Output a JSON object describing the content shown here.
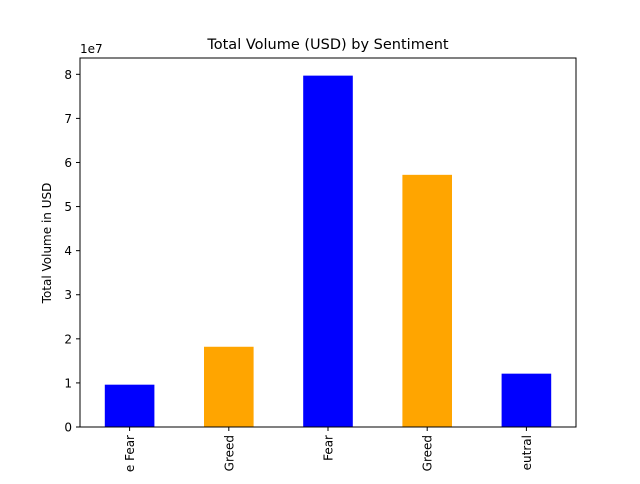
{
  "chart_data": {
    "type": "bar",
    "title": "Total Volume (USD) by Sentiment",
    "xlabel": "",
    "ylabel": "Total Volume in USD",
    "offset_label": "1e7",
    "categories": [
      "e Fear",
      "Greed",
      "Fear",
      "Greed",
      "eutral"
    ],
    "values": [
      9600000,
      18200000,
      79700000,
      57200000,
      12100000
    ],
    "bar_colors": [
      "#0000ff",
      "#ffa500",
      "#0000ff",
      "#ffa500",
      "#0000ff"
    ],
    "yticks": [
      0,
      10000000,
      20000000,
      30000000,
      40000000,
      50000000,
      60000000,
      70000000,
      80000000
    ],
    "ytick_labels": [
      "0",
      "1",
      "2",
      "3",
      "4",
      "5",
      "6",
      "7",
      "8"
    ],
    "ylim": [
      0,
      83700000
    ],
    "grid": false,
    "legend": "none"
  }
}
